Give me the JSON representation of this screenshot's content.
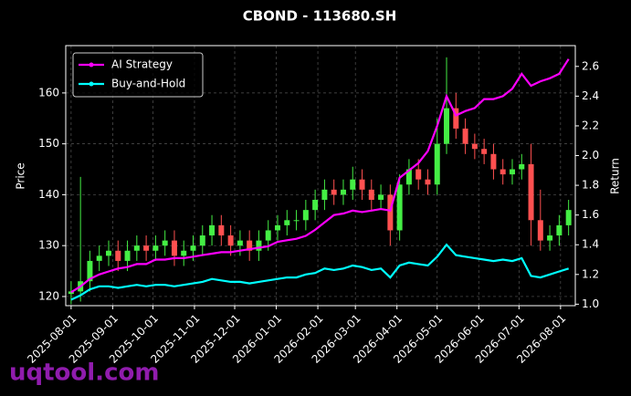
{
  "chart_data": {
    "type": "candlestick",
    "title": "CBOND - 113680.SH",
    "ylabel": "Price",
    "y2label": "Return",
    "x": [
      "2025-08-01",
      "2025-08-08",
      "2025-08-15",
      "2025-08-22",
      "2025-08-29",
      "2025-09-05",
      "2025-09-12",
      "2025-09-19",
      "2025-09-26",
      "2025-10-03",
      "2025-10-10",
      "2025-10-17",
      "2025-10-24",
      "2025-10-31",
      "2025-11-07",
      "2025-11-14",
      "2025-11-21",
      "2025-11-28",
      "2025-12-05",
      "2025-12-12",
      "2025-12-19",
      "2025-12-26",
      "2026-01-02",
      "2026-01-09",
      "2026-01-16",
      "2026-01-23",
      "2026-01-30",
      "2026-02-06",
      "2026-02-13",
      "2026-02-20",
      "2026-02-27",
      "2026-03-06",
      "2026-03-13",
      "2026-03-20",
      "2026-03-27",
      "2026-04-03",
      "2026-04-10",
      "2026-04-17",
      "2026-04-24",
      "2026-05-01",
      "2026-05-08",
      "2026-05-15",
      "2026-05-22",
      "2026-05-29",
      "2026-06-05",
      "2026-06-12",
      "2026-06-19",
      "2026-06-26",
      "2026-07-03",
      "2026-07-10",
      "2026-07-17",
      "2026-07-24",
      "2026-07-31",
      "2026-08-07"
    ],
    "open": [
      120.5,
      121,
      123,
      127,
      128,
      129,
      127,
      129,
      130,
      129,
      130,
      131,
      128,
      129,
      130,
      132,
      134,
      132,
      130,
      131,
      129,
      131,
      133,
      134,
      135,
      135,
      137,
      139,
      141,
      140,
      141,
      143,
      141,
      139,
      140,
      133,
      142,
      145,
      143,
      142,
      150,
      157,
      153,
      150,
      149,
      148,
      145,
      144,
      145,
      146,
      135,
      131,
      132,
      134
    ],
    "high": [
      123,
      143.5,
      129,
      130,
      131,
      131,
      131,
      132,
      132,
      132,
      133,
      133,
      131,
      132,
      134,
      136,
      136,
      134,
      133,
      133,
      133,
      135,
      136,
      137,
      137,
      139,
      141,
      143,
      143,
      143,
      145.5,
      145,
      143,
      142,
      142,
      144,
      147,
      147,
      145,
      155,
      167,
      160,
      155,
      152,
      151,
      150,
      147,
      147,
      148,
      150,
      141,
      134,
      136,
      139
    ],
    "low": [
      118.5,
      119,
      121,
      125,
      126,
      125,
      125,
      127,
      127,
      127,
      128,
      126,
      126,
      127,
      128,
      130,
      130,
      128,
      128,
      127,
      127,
      129,
      131,
      132,
      133,
      133,
      135,
      137,
      138,
      138,
      139,
      139,
      137,
      137,
      130,
      131,
      140,
      141,
      140,
      140,
      148,
      151,
      148,
      147,
      146,
      143,
      142,
      142,
      143,
      130,
      129,
      129,
      130,
      132
    ],
    "close": [
      121,
      123,
      127,
      128,
      129,
      127,
      129,
      130,
      129,
      130,
      131,
      128,
      129,
      130,
      132,
      134,
      132,
      130,
      131,
      129,
      131,
      133,
      134,
      135,
      135,
      137,
      139,
      141,
      140,
      141,
      143,
      141,
      139,
      140,
      133,
      142,
      145,
      143,
      142,
      150,
      157,
      153,
      150,
      149,
      148,
      145,
      144,
      145,
      146,
      135,
      131,
      132,
      134,
      137
    ],
    "up_color": "#44ee44",
    "down_color": "#ff5050",
    "series": [
      {
        "name": "AI Strategy",
        "color": "#ff00ff",
        "axis": "y2",
        "values": [
          1.08,
          1.12,
          1.17,
          1.2,
          1.22,
          1.24,
          1.25,
          1.27,
          1.27,
          1.3,
          1.3,
          1.31,
          1.31,
          1.32,
          1.33,
          1.34,
          1.35,
          1.35,
          1.36,
          1.37,
          1.38,
          1.39,
          1.42,
          1.43,
          1.44,
          1.46,
          1.5,
          1.55,
          1.6,
          1.61,
          1.63,
          1.62,
          1.63,
          1.64,
          1.63,
          1.85,
          1.9,
          1.95,
          2.03,
          2.2,
          2.4,
          2.27,
          2.3,
          2.32,
          2.38,
          2.38,
          2.4,
          2.45,
          2.55,
          2.47,
          2.5,
          2.52,
          2.55,
          2.65
        ]
      },
      {
        "name": "Buy-and-Hold",
        "color": "#00ffff",
        "axis": "y2",
        "values": [
          1.03,
          1.06,
          1.1,
          1.12,
          1.12,
          1.11,
          1.12,
          1.13,
          1.12,
          1.13,
          1.13,
          1.12,
          1.13,
          1.14,
          1.15,
          1.17,
          1.16,
          1.15,
          1.15,
          1.14,
          1.15,
          1.16,
          1.17,
          1.18,
          1.18,
          1.2,
          1.21,
          1.24,
          1.23,
          1.24,
          1.26,
          1.25,
          1.23,
          1.24,
          1.18,
          1.26,
          1.28,
          1.27,
          1.26,
          1.32,
          1.4,
          1.33,
          1.32,
          1.31,
          1.3,
          1.29,
          1.3,
          1.29,
          1.31,
          1.19,
          1.18,
          1.2,
          1.22,
          1.24
        ]
      }
    ],
    "xlim": [
      "2025-07-28",
      "2026-08-12"
    ],
    "xticks": [
      "2025-08-01",
      "2025-09-01",
      "2025-10-01",
      "2025-11-01",
      "2025-12-01",
      "2026-01-01",
      "2026-02-01",
      "2026-03-01",
      "2026-04-01",
      "2026-05-01",
      "2026-06-01",
      "2026-07-01",
      "2026-08-01"
    ],
    "ylim": [
      118.2,
      169.3
    ],
    "yticks": [
      120,
      130,
      140,
      150,
      160
    ],
    "y2lim": [
      0.99,
      2.74
    ],
    "y2ticks": [
      {
        "value": 1,
        "label": "1.0"
      },
      1.2,
      1.4,
      1.6,
      1.8,
      {
        "value": 2,
        "label": "2.0"
      },
      2.2,
      2.4,
      2.6
    ],
    "grid": true,
    "legend": "upper left"
  },
  "watermark": "uqtool.com"
}
